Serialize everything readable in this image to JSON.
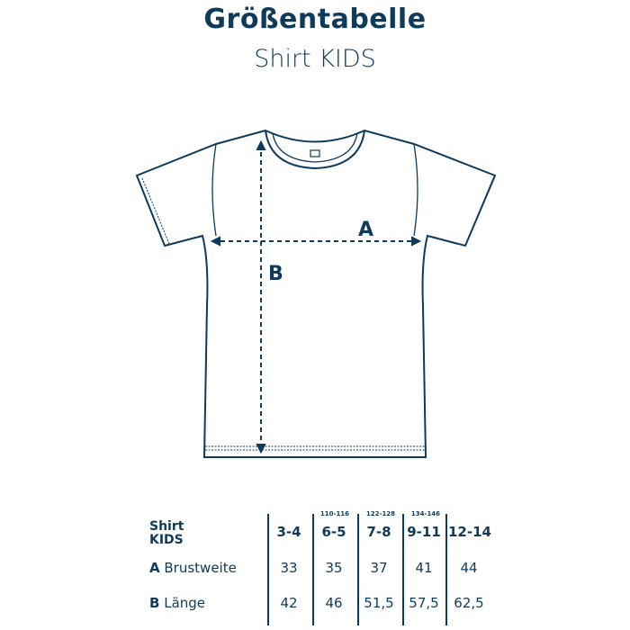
{
  "title": "Größentabelle",
  "subtitle": "Shirt KIDS",
  "diagram": {
    "label_a": "A",
    "label_b": "B"
  },
  "table": {
    "corner": [
      "Shirt",
      "KIDS"
    ],
    "columns": [
      {
        "size": "3-4",
        "sub": ""
      },
      {
        "size": "6-5",
        "sub": "110-116"
      },
      {
        "size": "7-8",
        "sub": "122-128"
      },
      {
        "size": "9-11",
        "sub": "134-146"
      },
      {
        "size": "12-14",
        "sub": ""
      }
    ],
    "rows": [
      {
        "letter": "A",
        "label": "Brustweite",
        "values": [
          "33",
          "35",
          "37",
          "41",
          "44"
        ]
      },
      {
        "letter": "B",
        "label": "Länge",
        "values": [
          "42",
          "46",
          "51,5",
          "57,5",
          "62,5"
        ]
      }
    ]
  },
  "colors": {
    "ink": "#0e3a5b"
  }
}
